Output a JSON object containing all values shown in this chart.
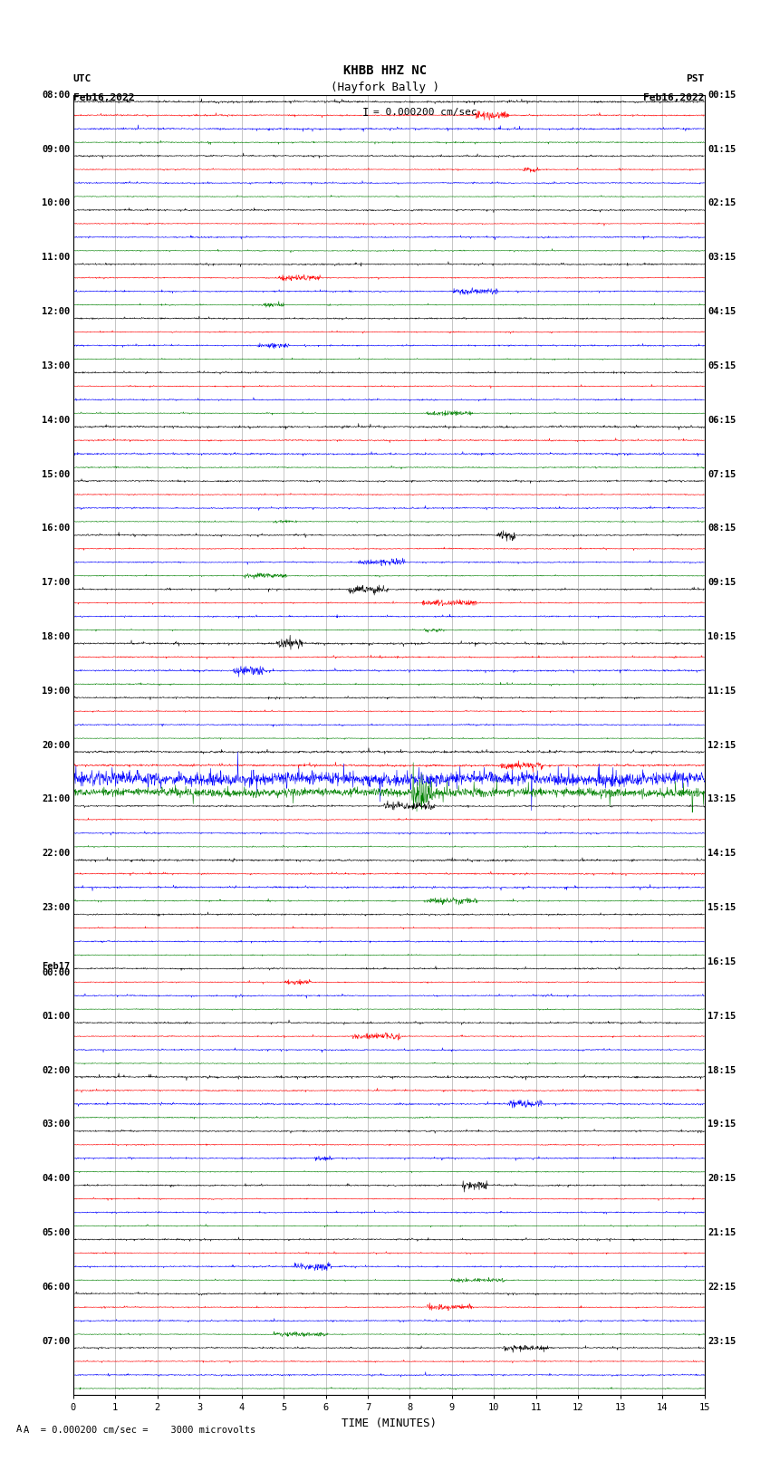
{
  "title_line1": "KHBB HHZ NC",
  "title_line2": "(Hayfork Bally )",
  "scale_label": "= 0.000200 cm/sec",
  "scale_label2": "A  = 0.000200 cm/sec =    3000 microvolts",
  "utc_line1": "UTC",
  "utc_line2": "Feb16,2022",
  "pst_line1": "PST",
  "pst_line2": "Feb16,2022",
  "xlabel": "TIME (MINUTES)",
  "bg_color": "#ffffff",
  "trace_colors": [
    "#000000",
    "#ff0000",
    "#0000ff",
    "#008000"
  ],
  "left_labels": [
    [
      "08:00",
      0
    ],
    [
      "09:00",
      4
    ],
    [
      "10:00",
      8
    ],
    [
      "11:00",
      12
    ],
    [
      "12:00",
      16
    ],
    [
      "13:00",
      20
    ],
    [
      "14:00",
      24
    ],
    [
      "15:00",
      28
    ],
    [
      "16:00",
      32
    ],
    [
      "17:00",
      36
    ],
    [
      "18:00",
      40
    ],
    [
      "19:00",
      44
    ],
    [
      "20:00",
      48
    ],
    [
      "21:00",
      52
    ],
    [
      "22:00",
      56
    ],
    [
      "23:00",
      60
    ],
    [
      "Feb17",
      64
    ],
    [
      "00:00",
      64
    ],
    [
      "01:00",
      68
    ],
    [
      "02:00",
      72
    ],
    [
      "03:00",
      76
    ],
    [
      "04:00",
      80
    ],
    [
      "05:00",
      84
    ],
    [
      "06:00",
      88
    ],
    [
      "07:00",
      92
    ]
  ],
  "right_labels": [
    [
      "00:15",
      0
    ],
    [
      "01:15",
      4
    ],
    [
      "02:15",
      8
    ],
    [
      "03:15",
      12
    ],
    [
      "04:15",
      16
    ],
    [
      "05:15",
      20
    ],
    [
      "06:15",
      24
    ],
    [
      "07:15",
      28
    ],
    [
      "08:15",
      32
    ],
    [
      "09:15",
      36
    ],
    [
      "10:15",
      40
    ],
    [
      "11:15",
      44
    ],
    [
      "12:15",
      48
    ],
    [
      "13:15",
      52
    ],
    [
      "14:15",
      56
    ],
    [
      "15:15",
      60
    ],
    [
      "16:15",
      64
    ],
    [
      "17:15",
      68
    ],
    [
      "18:15",
      72
    ],
    [
      "19:15",
      76
    ],
    [
      "20:15",
      80
    ],
    [
      "21:15",
      84
    ],
    [
      "22:15",
      88
    ],
    [
      "23:15",
      92
    ]
  ],
  "num_row_groups": 24,
  "traces_per_group": 4,
  "minutes": 15,
  "xmin": 0,
  "xmax": 15,
  "xticks": [
    0,
    1,
    2,
    3,
    4,
    5,
    6,
    7,
    8,
    9,
    10,
    11,
    12,
    13,
    14,
    15
  ],
  "noise_base": 0.055,
  "event_group": 12,
  "event_amplitudes": [
    0.08,
    0.08,
    0.55,
    0.35
  ],
  "grid_color": "#999999",
  "label_fontsize": 7.5
}
